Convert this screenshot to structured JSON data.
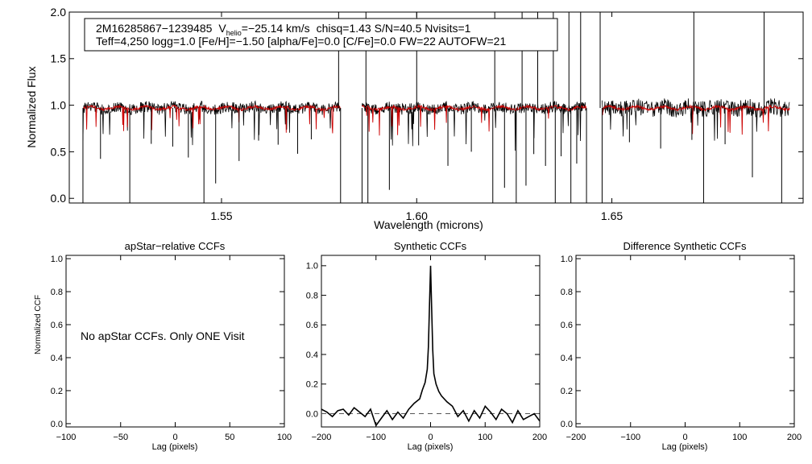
{
  "colors": {
    "observed": "#000000",
    "model": "#cc0000",
    "background": "#ffffff",
    "zero_line": "#555555"
  },
  "chart_data": [
    {
      "type": "line",
      "id": "spectrum",
      "title": "",
      "xlabel": "Wavelength (microns)",
      "ylabel": "Normalized Flux",
      "xlim": [
        1.511,
        1.699
      ],
      "ylim": [
        -0.05,
        2.0
      ],
      "xticks": [
        {
          "v": 1.55,
          "label": "1.55"
        },
        {
          "v": 1.6,
          "label": "1.60"
        },
        {
          "v": 1.65,
          "label": "1.65"
        }
      ],
      "yticks": [
        {
          "v": 0.0,
          "label": "0.0"
        },
        {
          "v": 0.5,
          "label": "0.5"
        },
        {
          "v": 1.0,
          "label": "1.0"
        },
        {
          "v": 1.5,
          "label": "1.5"
        },
        {
          "v": 2.0,
          "label": "2.0"
        }
      ],
      "chips": [
        [
          1.5145,
          1.5805
        ],
        [
          1.586,
          1.6435
        ],
        [
          1.6475,
          1.6955
        ]
      ],
      "continuum": 0.97,
      "bad_pixels_full": [
        1.5145,
        1.5265,
        1.5455,
        1.5805,
        1.586,
        1.5875,
        1.6195,
        1.6255,
        1.6355,
        1.6395,
        1.6435,
        1.6475,
        1.6735,
        1.6935
      ],
      "bad_pixels_short": [
        1.519,
        1.532,
        1.5375,
        1.5415,
        1.5485,
        1.5545,
        1.5595,
        1.5645,
        1.5695,
        1.573,
        1.593,
        1.6005,
        1.608,
        1.614,
        1.6225,
        1.628,
        1.63,
        1.633,
        1.637,
        1.641,
        1.6545,
        1.6625,
        1.6705,
        1.679,
        1.686
      ],
      "bad_pixels_high": [
        1.58,
        1.587,
        1.6,
        1.62,
        1.627,
        1.631,
        1.635,
        1.639,
        1.642,
        1.647,
        1.671,
        1.689
      ],
      "series": [
        {
          "name": "observed spectrum",
          "color": "#000000"
        },
        {
          "name": "synthetic model",
          "color": "#cc0000"
        }
      ],
      "annotation": {
        "line1": {
          "star": "2M16285867−1239485",
          "v_prefix": "V",
          "v_sub": "helio",
          "v_value": "=−25.14 km/s",
          "rest": "chisq=1.43  S/N=40.5  Nvisits=1"
        },
        "line2": "Teff=4,250 logg=1.0 [Fe/H]=−1.50 [alpha/Fe]=0.0 [C/Fe]=0.0 FW=22 AUTOFW=21"
      }
    },
    {
      "type": "line",
      "id": "apstar_ccf",
      "title": "apStar−relative CCFs",
      "xlabel": "Lag (pixels)",
      "ylabel": "Normalized CCF",
      "xlim": [
        -100,
        100
      ],
      "ylim": [
        -0.02,
        1.02
      ],
      "xticks": [
        {
          "v": -100,
          "label": "−100"
        },
        {
          "v": -50,
          "label": "−50"
        },
        {
          "v": 0,
          "label": "0"
        },
        {
          "v": 50,
          "label": "50"
        },
        {
          "v": 100,
          "label": "100"
        }
      ],
      "yticks": [
        {
          "v": 0.0,
          "label": "0.0"
        },
        {
          "v": 0.2,
          "label": "0.2"
        },
        {
          "v": 0.4,
          "label": "0.4"
        },
        {
          "v": 0.6,
          "label": "0.6"
        },
        {
          "v": 0.8,
          "label": "0.8"
        },
        {
          "v": 1.0,
          "label": "1.0"
        }
      ],
      "message": "No apStar CCFs.  Only ONE Visit",
      "series": []
    },
    {
      "type": "line",
      "id": "synthetic_ccf",
      "title": "Synthetic CCFs",
      "xlabel": "Lag (pixels)",
      "ylabel": "",
      "xlim": [
        -200,
        200
      ],
      "ylim": [
        -0.09,
        1.07
      ],
      "xticks": [
        {
          "v": -200,
          "label": "−200"
        },
        {
          "v": -100,
          "label": "−100"
        },
        {
          "v": 0,
          "label": "0"
        },
        {
          "v": 100,
          "label": "100"
        },
        {
          "v": 200,
          "label": "200"
        }
      ],
      "yticks": [
        {
          "v": 0.0,
          "label": "0.0"
        },
        {
          "v": 0.2,
          "label": "0.2"
        },
        {
          "v": 0.4,
          "label": "0.4"
        },
        {
          "v": 0.6,
          "label": "0.6"
        },
        {
          "v": 0.8,
          "label": "0.8"
        },
        {
          "v": 1.0,
          "label": "1.0"
        }
      ],
      "zero_line": 0.0,
      "series": [
        {
          "name": "synthetic CCF",
          "color": "#000000",
          "x": [
            -200,
            -190,
            -180,
            -170,
            -160,
            -150,
            -140,
            -130,
            -120,
            -110,
            -100,
            -90,
            -80,
            -70,
            -60,
            -50,
            -40,
            -30,
            -20,
            -15,
            -10,
            -6,
            -4,
            -2,
            0,
            2,
            4,
            6,
            10,
            15,
            20,
            30,
            40,
            50,
            60,
            70,
            80,
            90,
            100,
            110,
            120,
            130,
            140,
            150,
            160,
            170,
            180,
            190,
            200
          ],
          "y": [
            0.03,
            0.01,
            -0.02,
            0.02,
            0.03,
            -0.01,
            0.04,
            0.01,
            -0.02,
            0.03,
            -0.08,
            -0.03,
            0.02,
            -0.04,
            0.01,
            -0.03,
            0.03,
            0.07,
            0.1,
            0.16,
            0.21,
            0.3,
            0.45,
            0.72,
            1.0,
            0.7,
            0.43,
            0.27,
            0.2,
            0.15,
            0.12,
            0.08,
            0.05,
            -0.02,
            0.02,
            -0.05,
            0.02,
            -0.03,
            0.05,
            0.01,
            -0.04,
            0.03,
            0.0,
            -0.06,
            0.02,
            -0.04,
            -0.02,
            0.0,
            -0.05
          ]
        }
      ]
    },
    {
      "type": "line",
      "id": "difference_ccf",
      "title": "Difference Synthetic CCFs",
      "xlabel": "Lag (pixels)",
      "ylabel": "",
      "xlim": [
        -200,
        200
      ],
      "ylim": [
        -0.02,
        1.02
      ],
      "xticks": [
        {
          "v": -200,
          "label": "−200"
        },
        {
          "v": -100,
          "label": "−100"
        },
        {
          "v": 0,
          "label": "0"
        },
        {
          "v": 100,
          "label": "100"
        },
        {
          "v": 200,
          "label": "200"
        }
      ],
      "yticks": [
        {
          "v": 0.0,
          "label": "0.0"
        },
        {
          "v": 0.2,
          "label": "0.2"
        },
        {
          "v": 0.4,
          "label": "0.4"
        },
        {
          "v": 0.6,
          "label": "0.6"
        },
        {
          "v": 0.8,
          "label": "0.8"
        },
        {
          "v": 1.0,
          "label": "1.0"
        }
      ],
      "series": []
    }
  ]
}
